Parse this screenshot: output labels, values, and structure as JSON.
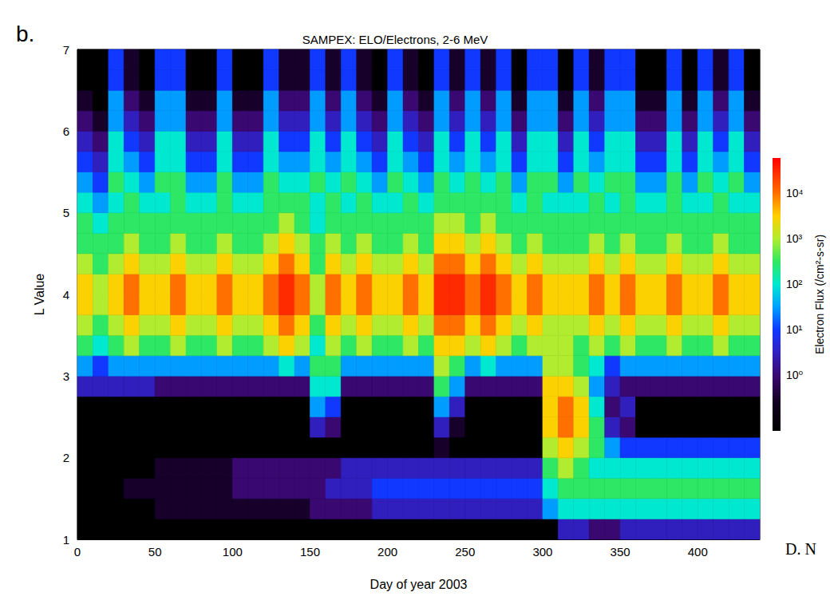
{
  "chart_data": {
    "type": "heatmap",
    "panel": "b.",
    "title": "SAMPEX: ELO/Electrons, 2-6 MeV",
    "annotations": [
      "D. N"
    ],
    "xlabel": "Day of year 2003",
    "ylabel": "L Value",
    "xlim": [
      0,
      440
    ],
    "xticks": [
      0,
      50,
      100,
      150,
      200,
      250,
      300,
      350,
      400
    ],
    "ylim": [
      1,
      7
    ],
    "yticks": [
      1,
      2,
      3,
      4,
      5,
      6,
      7
    ],
    "x_edges": [
      0,
      10,
      20,
      30,
      40,
      50,
      60,
      70,
      80,
      90,
      100,
      110,
      120,
      130,
      140,
      150,
      160,
      170,
      180,
      190,
      200,
      210,
      220,
      230,
      240,
      250,
      260,
      270,
      280,
      290,
      300,
      310,
      320,
      330,
      340,
      350,
      360,
      370,
      380,
      390,
      400,
      410,
      420,
      430,
      440
    ],
    "y_edges": [
      1,
      1.25,
      1.5,
      1.75,
      2,
      2.25,
      2.5,
      2.75,
      3,
      3.25,
      3.5,
      3.75,
      4,
      4.25,
      4.5,
      4.75,
      5,
      5.25,
      5.5,
      5.75,
      6,
      6.25,
      6.5,
      6.75,
      7
    ],
    "cells": [
      [
        0.06,
        0.06,
        0.06,
        0.06,
        0.06,
        0.06,
        0.06,
        3,
        30,
        300,
        1000,
        3000,
        3000,
        1000,
        300,
        300,
        100,
        30,
        10,
        3,
        1,
        0.3,
        0.06,
        0.06
      ],
      [
        0.06,
        0.06,
        0.06,
        0.06,
        0.06,
        0.06,
        0.06,
        3,
        10,
        100,
        300,
        1000,
        1000,
        300,
        300,
        100,
        30,
        10,
        3,
        1,
        0.3,
        0.06,
        0.06,
        0.06
      ],
      [
        0.06,
        0.06,
        0.06,
        0.06,
        0.06,
        0.06,
        0.06,
        3,
        30,
        300,
        1000,
        3000,
        3000,
        1000,
        300,
        300,
        100,
        300,
        100,
        100,
        30,
        30,
        10,
        10
      ],
      [
        0.06,
        0.06,
        0.3,
        0.06,
        0.06,
        0.06,
        0.06,
        3,
        30,
        1000,
        3000,
        10000,
        10000,
        3000,
        1000,
        300,
        300,
        100,
        30,
        10,
        3,
        1,
        0.3,
        0.3
      ],
      [
        0.06,
        0.06,
        0.3,
        0.06,
        0.06,
        0.06,
        0.06,
        3,
        30,
        300,
        1000,
        3000,
        3000,
        1000,
        300,
        300,
        100,
        30,
        10,
        3,
        1,
        0.3,
        0.06,
        0.06
      ],
      [
        0.06,
        0.3,
        0.3,
        0.3,
        0.06,
        0.06,
        0.06,
        1,
        30,
        300,
        1000,
        3000,
        3000,
        1000,
        300,
        300,
        100,
        300,
        100,
        100,
        30,
        30,
        10,
        10
      ],
      [
        0.06,
        0.3,
        0.3,
        0.3,
        0.06,
        0.06,
        0.06,
        1,
        30,
        1000,
        3000,
        10000,
        10000,
        3000,
        1000,
        300,
        300,
        300,
        100,
        100,
        30,
        30,
        10,
        10
      ],
      [
        0.06,
        0.3,
        0.3,
        0.3,
        0.06,
        0.06,
        0.06,
        1,
        30,
        300,
        1000,
        3000,
        3000,
        1000,
        300,
        300,
        100,
        30,
        10,
        3,
        1,
        0.3,
        0.06,
        0.06
      ],
      [
        0.06,
        0.3,
        0.3,
        0.3,
        0.06,
        0.06,
        0.06,
        1,
        30,
        300,
        1000,
        3000,
        3000,
        1000,
        300,
        300,
        100,
        30,
        10,
        3,
        1,
        0.3,
        0.06,
        0.06
      ],
      [
        0.06,
        0.3,
        0.3,
        0.3,
        0.06,
        0.06,
        0.06,
        1,
        30,
        1000,
        3000,
        10000,
        10000,
        3000,
        1000,
        300,
        300,
        300,
        100,
        100,
        30,
        30,
        10,
        10
      ],
      [
        0.06,
        0.3,
        1,
        1,
        0.06,
        0.06,
        0.06,
        1,
        30,
        300,
        1000,
        3000,
        3000,
        1000,
        300,
        300,
        100,
        30,
        10,
        3,
        1,
        0.3,
        0.06,
        0.06
      ],
      [
        0.06,
        0.3,
        1,
        1,
        0.06,
        0.06,
        0.06,
        1,
        30,
        300,
        1000,
        3000,
        3000,
        1000,
        300,
        300,
        100,
        30,
        10,
        3,
        1,
        0.3,
        0.06,
        0.06
      ],
      [
        0.06,
        0.3,
        1,
        1,
        0.06,
        0.06,
        0.06,
        1,
        30,
        1000,
        3000,
        10000,
        10000,
        3000,
        1000,
        300,
        300,
        300,
        100,
        100,
        30,
        30,
        10,
        10
      ],
      [
        0.06,
        0.3,
        1,
        1,
        0.06,
        0.06,
        0.06,
        1,
        100,
        3000,
        10000,
        30000,
        30000,
        10000,
        3000,
        1000,
        300,
        100,
        30,
        10,
        3,
        1,
        0.3,
        0.3
      ],
      [
        0.06,
        0.3,
        1,
        1,
        0.06,
        0.06,
        0.06,
        1,
        30,
        1000,
        3000,
        10000,
        10000,
        3000,
        1000,
        300,
        300,
        100,
        30,
        10,
        3,
        1,
        0.3,
        0.3
      ],
      [
        0.06,
        1,
        1,
        1,
        0.06,
        3,
        30,
        100,
        300,
        100,
        300,
        1000,
        1000,
        300,
        300,
        100,
        100,
        300,
        100,
        100,
        30,
        30,
        10,
        10
      ],
      [
        0.06,
        1,
        3,
        1,
        0.06,
        1,
        10,
        100,
        300,
        1000,
        3000,
        10000,
        10000,
        3000,
        1000,
        300,
        300,
        100,
        30,
        10,
        3,
        1,
        0.3,
        0.3
      ],
      [
        0.06,
        1,
        3,
        3,
        0.06,
        0.06,
        0.06,
        1,
        30,
        300,
        1000,
        3000,
        3000,
        1000,
        300,
        300,
        100,
        300,
        100,
        100,
        30,
        30,
        10,
        10
      ],
      [
        0.06,
        1,
        3,
        3,
        0.06,
        0.06,
        0.06,
        1,
        30,
        1000,
        3000,
        10000,
        10000,
        3000,
        1000,
        300,
        300,
        100,
        30,
        10,
        3,
        1,
        0.3,
        0.3
      ],
      [
        0.06,
        3,
        10,
        3,
        0.06,
        0.06,
        0.06,
        1,
        30,
        300,
        1000,
        3000,
        3000,
        1000,
        300,
        300,
        100,
        30,
        10,
        3,
        1,
        0.3,
        0.06,
        0.06
      ],
      [
        0.06,
        3,
        10,
        3,
        0.06,
        0.06,
        0.06,
        1,
        30,
        300,
        1000,
        3000,
        3000,
        1000,
        300,
        300,
        100,
        300,
        100,
        100,
        30,
        30,
        10,
        10
      ],
      [
        0.06,
        3,
        10,
        3,
        0.06,
        0.06,
        0.06,
        1,
        30,
        1000,
        3000,
        10000,
        10000,
        3000,
        1000,
        300,
        300,
        100,
        30,
        10,
        3,
        1,
        0.3,
        0.3
      ],
      [
        0.06,
        3,
        10,
        3,
        0.06,
        0.06,
        0.06,
        1,
        30,
        300,
        1000,
        3000,
        3000,
        1000,
        300,
        300,
        100,
        30,
        10,
        3,
        1,
        0.3,
        0.06,
        0.06
      ],
      [
        0.06,
        3,
        10,
        3,
        0.3,
        3,
        30,
        300,
        1000,
        3000,
        10000,
        30000,
        30000,
        10000,
        3000,
        1000,
        300,
        300,
        100,
        100,
        30,
        30,
        10,
        10
      ],
      [
        0.06,
        3,
        10,
        3,
        0.06,
        0.3,
        3,
        30,
        300,
        3000,
        10000,
        30000,
        30000,
        10000,
        3000,
        1000,
        300,
        100,
        30,
        10,
        3,
        1,
        0.3,
        0.3
      ],
      [
        0.06,
        3,
        10,
        3,
        0.06,
        0.06,
        0.06,
        1,
        30,
        1000,
        3000,
        10000,
        10000,
        3000,
        1000,
        300,
        300,
        300,
        100,
        100,
        30,
        30,
        10,
        10
      ],
      [
        0.06,
        3,
        10,
        3,
        0.06,
        0.06,
        0.06,
        1,
        100,
        3000,
        10000,
        30000,
        30000,
        10000,
        3000,
        1000,
        300,
        100,
        30,
        10,
        3,
        1,
        0.3,
        0.3
      ],
      [
        0.06,
        3,
        10,
        3,
        0.06,
        0.06,
        0.06,
        1,
        30,
        1000,
        3000,
        10000,
        10000,
        3000,
        1000,
        300,
        300,
        300,
        100,
        100,
        30,
        30,
        10,
        10
      ],
      [
        0.06,
        3,
        10,
        3,
        0.06,
        0.06,
        0.06,
        1,
        30,
        300,
        1000,
        3000,
        3000,
        1000,
        300,
        300,
        100,
        30,
        10,
        3,
        1,
        0.3,
        0.06,
        0.06
      ],
      [
        0.06,
        3,
        10,
        3,
        0.06,
        0.06,
        0.06,
        1,
        30,
        1000,
        3000,
        10000,
        10000,
        3000,
        1000,
        300,
        300,
        300,
        100,
        100,
        30,
        30,
        10,
        10
      ],
      [
        0.06,
        30,
        100,
        300,
        1000,
        3000,
        3000,
        3000,
        1000,
        1000,
        1000,
        3000,
        3000,
        1000,
        300,
        300,
        100,
        300,
        100,
        100,
        30,
        30,
        10,
        10
      ],
      [
        3,
        100,
        300,
        1000,
        3000,
        10000,
        10000,
        3000,
        1000,
        1000,
        1000,
        3000,
        3000,
        1000,
        300,
        300,
        100,
        30,
        10,
        3,
        1,
        0.3,
        0.06,
        0.06
      ],
      [
        3,
        100,
        300,
        300,
        1000,
        3000,
        3000,
        1000,
        300,
        300,
        1000,
        3000,
        3000,
        1000,
        300,
        300,
        100,
        300,
        100,
        100,
        30,
        30,
        10,
        10
      ],
      [
        1,
        100,
        300,
        100,
        300,
        300,
        100,
        30,
        100,
        1000,
        3000,
        10000,
        10000,
        3000,
        1000,
        300,
        300,
        100,
        30,
        10,
        3,
        1,
        0.3,
        0.3
      ],
      [
        1,
        100,
        300,
        100,
        30,
        3,
        1,
        3,
        10,
        300,
        1000,
        3000,
        3000,
        1000,
        300,
        300,
        100,
        300,
        100,
        100,
        30,
        30,
        10,
        10
      ],
      [
        3,
        100,
        300,
        100,
        10,
        1,
        3,
        1,
        30,
        1000,
        3000,
        10000,
        10000,
        3000,
        1000,
        300,
        300,
        300,
        100,
        100,
        30,
        30,
        10,
        10
      ],
      [
        3,
        100,
        300,
        100,
        10,
        0.06,
        0.06,
        1,
        30,
        300,
        1000,
        3000,
        3000,
        1000,
        300,
        300,
        100,
        30,
        10,
        3,
        1,
        0.3,
        0.06,
        0.06
      ],
      [
        3,
        100,
        300,
        100,
        10,
        0.06,
        0.06,
        1,
        30,
        300,
        1000,
        3000,
        3000,
        1000,
        300,
        300,
        100,
        30,
        10,
        3,
        1,
        0.3,
        0.06,
        0.06
      ],
      [
        3,
        100,
        300,
        100,
        10,
        0.06,
        0.06,
        1,
        30,
        1000,
        3000,
        10000,
        10000,
        3000,
        1000,
        300,
        300,
        300,
        100,
        100,
        30,
        30,
        10,
        10
      ],
      [
        3,
        100,
        300,
        100,
        10,
        0.06,
        0.06,
        1,
        30,
        300,
        1000,
        3000,
        3000,
        1000,
        300,
        300,
        100,
        30,
        10,
        3,
        1,
        0.3,
        0.06,
        0.06
      ],
      [
        3,
        100,
        300,
        100,
        10,
        0.06,
        0.06,
        1,
        30,
        300,
        1000,
        3000,
        3000,
        1000,
        300,
        300,
        100,
        300,
        100,
        100,
        30,
        30,
        10,
        10
      ],
      [
        3,
        100,
        300,
        100,
        10,
        0.06,
        0.06,
        1,
        30,
        1000,
        3000,
        10000,
        10000,
        3000,
        1000,
        300,
        300,
        100,
        30,
        10,
        3,
        1,
        0.3,
        0.3
      ],
      [
        3,
        100,
        300,
        100,
        10,
        0.06,
        0.06,
        1,
        30,
        300,
        1000,
        3000,
        3000,
        1000,
        300,
        300,
        100,
        300,
        100,
        100,
        30,
        30,
        10,
        10
      ],
      [
        3,
        100,
        300,
        100,
        10,
        0.06,
        0.06,
        1,
        30,
        300,
        1000,
        3000,
        3000,
        1000,
        300,
        300,
        100,
        30,
        10,
        3,
        1,
        0.3,
        0.06,
        0.06
      ]
    ],
    "colorbar": {
      "label": "Electron Flux (/cm²-s-sr)",
      "range": [
        0.06,
        60000
      ],
      "log": true,
      "ticks": [
        {
          "value": 1,
          "label": "10⁰"
        },
        {
          "value": 10,
          "label": "10¹"
        },
        {
          "value": 100,
          "label": "10²"
        },
        {
          "value": 1000,
          "label": "10³"
        },
        {
          "value": 10000,
          "label": "10⁴"
        }
      ]
    }
  }
}
